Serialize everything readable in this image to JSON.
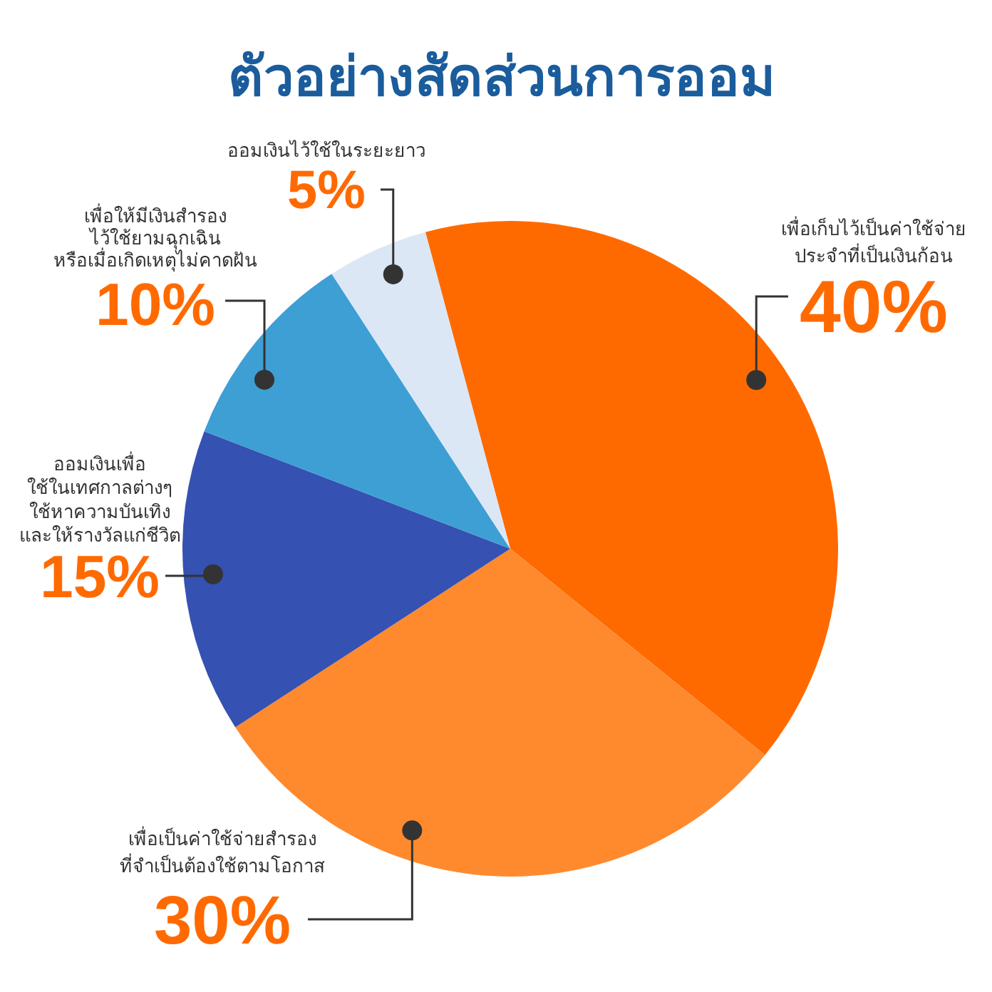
{
  "chart_data": {
    "type": "pie",
    "title": "ตัวอย่างสัดส่วนการออม",
    "categories": [
      "เพื่อเก็บไว้เป็นค่าใช้จ่าย\nประจำที่เป็นเงินก้อน",
      "เพื่อเป็นค่าใช้จ่ายสำรอง\nที่จำเป็นต้องใช้ตามโอกาส",
      "ออมเงินเพื่อ\nใช้ในเทศกาลต่างๆ\nใช้หาความบันเทิง\nและให้รางวัลแก่ชีวิต",
      "เพื่อให้มีเงินสำรอง\nไว้ใช้ยามฉุกเฉิน\nหรือเมื่อเกิดเหตุไม่คาดฝัน",
      "ออมเงินไว้ใช้ในระยะยาว"
    ],
    "values": [
      40,
      30,
      15,
      10,
      5
    ],
    "colors": [
      "#ff6a00",
      "#ff8a2e",
      "#3551b1",
      "#3d9fd4",
      "#dce7f6"
    ],
    "value_labels": [
      "40%",
      "30%",
      "15%",
      "10%",
      "5%"
    ]
  }
}
